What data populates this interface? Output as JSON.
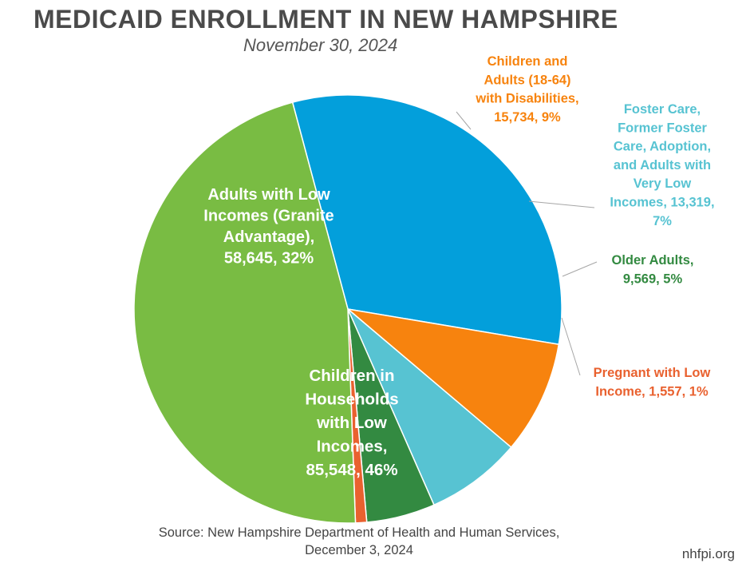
{
  "header": {
    "title": "MEDICAID ENROLLMENT IN NEW HAMPSHIRE",
    "subtitle": "November 30, 2024"
  },
  "footer": {
    "source_line1": "Source: New Hampshire Department of Health and Human Services,",
    "source_line2": "December 3, 2024",
    "site": "nhfpi.org"
  },
  "chart_data": {
    "type": "pie",
    "title": "MEDICAID ENROLLMENT IN NEW HAMPSHIRE",
    "subtitle": "November 30, 2024",
    "legend": "none",
    "slices": [
      {
        "key": "adults-low-income",
        "value": 58645,
        "percent": 32,
        "color": "#039fdb",
        "label_lines": [
          "Adults with Low",
          "Incomes (Granite",
          "Advantage),",
          "58,645, 32%"
        ],
        "label_placement": "inside",
        "label_color": "#ffffff"
      },
      {
        "key": "disabilities",
        "value": 15734,
        "percent": 9,
        "color": "#f7830e",
        "label_lines": [
          "Children and",
          "Adults (18-64)",
          "with Disabilities,",
          "15,734, 9%"
        ],
        "label_placement": "outside",
        "label_color": "#f7830e"
      },
      {
        "key": "foster-care",
        "value": 13319,
        "percent": 7,
        "color": "#57c3d2",
        "label_lines": [
          "Foster Care,",
          "Former Foster",
          "Care, Adoption,",
          "and Adults with",
          "Very Low",
          "Incomes, 13,319,",
          "7%"
        ],
        "label_placement": "outside",
        "label_color": "#57c3d2"
      },
      {
        "key": "older-adults",
        "value": 9569,
        "percent": 5,
        "color": "#338a41",
        "label_lines": [
          "Older Adults,",
          "9,569, 5%"
        ],
        "label_placement": "outside",
        "label_color": "#338a41"
      },
      {
        "key": "pregnant",
        "value": 1557,
        "percent": 1,
        "color": "#e9612f",
        "label_lines": [
          "Pregnant with Low",
          "Income, 1,557, 1%"
        ],
        "label_placement": "outside",
        "label_color": "#e9612f"
      },
      {
        "key": "children-low-income",
        "value": 85548,
        "percent": 46,
        "color": "#79bc43",
        "label_lines": [
          "Children in",
          "Households",
          "with Low",
          "Incomes,",
          "85,548, 46%"
        ],
        "label_placement": "inside",
        "label_color": "#ffffff"
      }
    ]
  }
}
